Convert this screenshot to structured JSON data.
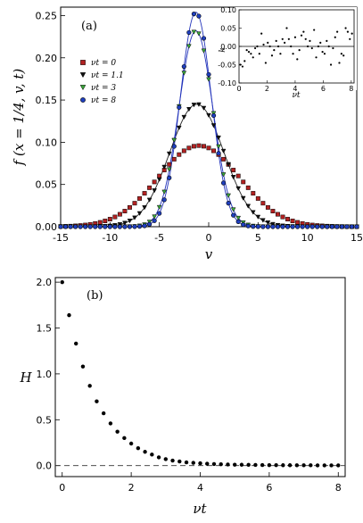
{
  "chart_data": [
    {
      "type": "scatter",
      "panel_label": "(a)",
      "xlabel": "v",
      "ylabel": "f (x = 1/4, v, t)",
      "xlim": [
        -15,
        15
      ],
      "ylim": [
        0,
        0.26
      ],
      "xticks": [
        "-15",
        "-10",
        "-5",
        "0",
        "5",
        "10",
        "15"
      ],
      "yticks": [
        "0.00",
        "0.05",
        "0.10",
        "0.15",
        "0.20",
        "0.25"
      ],
      "legend_position": "top-left",
      "series": [
        {
          "name": "νt = 0",
          "color": "#b22222",
          "marker": "square",
          "center": -1.0,
          "sigma": 4.13,
          "peak": 0.096,
          "fit_line": false
        },
        {
          "name": "νt = 1.1",
          "color": "#111111",
          "marker": "triangle-down",
          "center": -1.2,
          "sigma": 2.75,
          "peak": 0.145,
          "fit_line": true
        },
        {
          "name": "νt = 3",
          "color": "#3aa53a",
          "marker": "triangle-down",
          "center": -1.3,
          "sigma": 1.72,
          "peak": 0.232,
          "fit_line": true
        },
        {
          "name": "νt = 8",
          "color": "#1f3fbf",
          "marker": "circle",
          "center": -1.3,
          "sigma": 1.57,
          "peak": 0.254,
          "fit_line": true
        }
      ],
      "line_color": "#2233bb",
      "inset": {
        "ylabel": "k",
        "xlabel": "νt",
        "xlim": [
          0,
          8.2
        ],
        "ylim": [
          -0.1,
          0.1
        ],
        "xticks": [
          "0",
          "2",
          "4",
          "6",
          "8"
        ],
        "yticks": [
          "0.10",
          "0.05",
          "0.00",
          "-0.05",
          "-0.10"
        ],
        "hline": 0.0,
        "x": [
          0.1,
          0.25,
          0.4,
          0.55,
          0.7,
          0.85,
          1.0,
          1.15,
          1.3,
          1.45,
          1.6,
          1.75,
          1.9,
          2.05,
          2.2,
          2.35,
          2.5,
          2.65,
          2.8,
          2.95,
          3.1,
          3.25,
          3.4,
          3.55,
          3.7,
          3.85,
          4.0,
          4.15,
          4.3,
          4.45,
          4.6,
          4.75,
          4.9,
          5.05,
          5.2,
          5.35,
          5.5,
          5.65,
          5.8,
          5.95,
          6.1,
          6.25,
          6.4,
          6.55,
          6.7,
          6.85,
          7.0,
          7.15,
          7.3,
          7.45,
          7.6,
          7.75,
          7.9,
          8.05
        ],
        "y": [
          -0.05,
          -0.055,
          -0.04,
          -0.01,
          -0.015,
          -0.02,
          -0.03,
          -0.005,
          0.0,
          -0.02,
          0.035,
          0.005,
          -0.045,
          0.01,
          0.0,
          -0.025,
          -0.01,
          0.015,
          0.0,
          -0.02,
          0.02,
          0.01,
          0.05,
          0.02,
          0.0,
          -0.02,
          0.025,
          -0.035,
          -0.01,
          0.03,
          0.04,
          0.02,
          0.0,
          0.015,
          -0.005,
          0.045,
          -0.03,
          0.0,
          0.01,
          -0.015,
          -0.02,
          0.015,
          0.0,
          -0.05,
          -0.005,
          0.025,
          0.04,
          -0.045,
          -0.02,
          -0.025,
          0.05,
          0.04,
          0.02,
          0.035
        ]
      }
    },
    {
      "type": "scatter",
      "panel_label": "(b)",
      "xlabel": "νt",
      "ylabel": "H",
      "xlim": [
        -0.2,
        8.2
      ],
      "ylim": [
        -0.12,
        2.05
      ],
      "xticks": [
        "0",
        "2",
        "4",
        "6",
        "8"
      ],
      "yticks": [
        "0.0",
        "0.5",
        "1.0",
        "1.5",
        "2.0"
      ],
      "hline": 0.0,
      "x": [
        0.0,
        0.2,
        0.4,
        0.6,
        0.8,
        1.0,
        1.2,
        1.4,
        1.6,
        1.8,
        2.0,
        2.2,
        2.4,
        2.6,
        2.8,
        3.0,
        3.2,
        3.4,
        3.6,
        3.8,
        4.0,
        4.2,
        4.4,
        4.6,
        4.8,
        5.0,
        5.2,
        5.4,
        5.6,
        5.8,
        6.0,
        6.2,
        6.4,
        6.6,
        6.8,
        7.0,
        7.2,
        7.4,
        7.6,
        7.8,
        8.0
      ],
      "y": [
        2.0,
        1.64,
        1.33,
        1.08,
        0.87,
        0.7,
        0.57,
        0.46,
        0.37,
        0.3,
        0.24,
        0.19,
        0.15,
        0.12,
        0.09,
        0.07,
        0.055,
        0.045,
        0.035,
        0.03,
        0.025,
        0.02,
        0.017,
        0.014,
        0.012,
        0.01,
        0.009,
        0.008,
        0.007,
        0.006,
        0.005,
        0.005,
        0.004,
        0.004,
        0.003,
        0.003,
        0.003,
        0.002,
        0.002,
        0.002,
        0.002
      ]
    }
  ]
}
